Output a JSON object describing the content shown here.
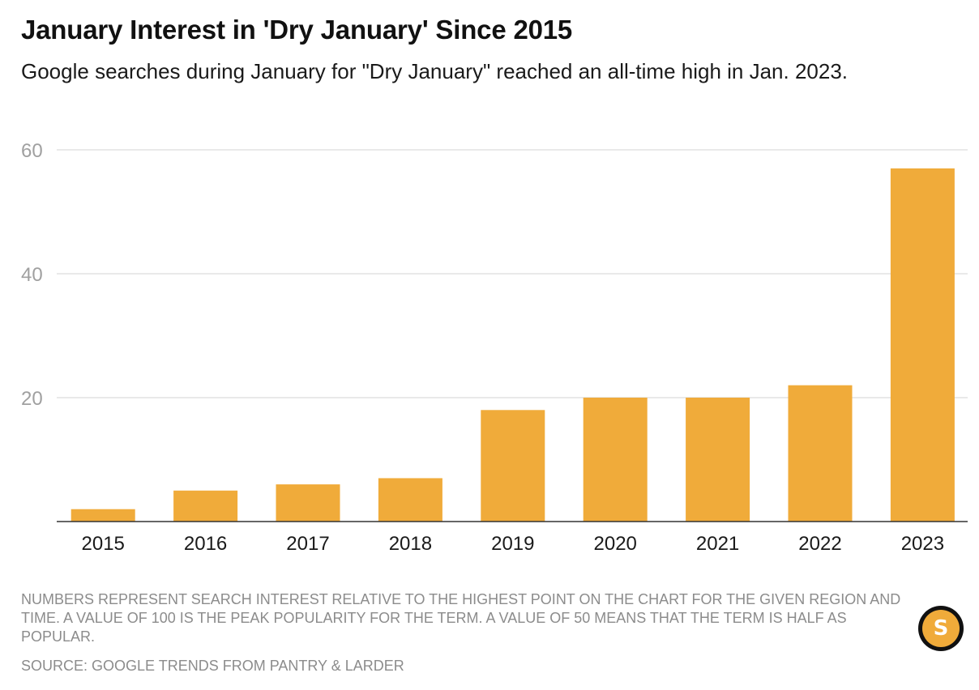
{
  "header": {
    "title": "January Interest in 'Dry January' Since 2015",
    "subtitle": "Google searches during January for \"Dry January\" reached an all-time high in Jan. 2023."
  },
  "chart_data": {
    "type": "bar",
    "categories": [
      "2015",
      "2016",
      "2017",
      "2018",
      "2019",
      "2020",
      "2021",
      "2022",
      "2023"
    ],
    "values": [
      2,
      5,
      6,
      7,
      18,
      20,
      20,
      22,
      57
    ],
    "ylim": [
      0,
      60
    ],
    "yticks": [
      20,
      40,
      60
    ],
    "grid": true,
    "bar_color": "#f0ab3a",
    "xlabel": "",
    "ylabel": ""
  },
  "footer": {
    "note": "Numbers represent search interest relative to the highest point on the chart for the given region and time. A value of 100 is the peak popularity for the term. A value of 50 means that the term is half as popular.",
    "source": "Source: Google Trends from Pantry & Larder",
    "logo_letter": "S"
  },
  "colors": {
    "accent": "#f0ab3a",
    "gridline": "#e2e2e2",
    "axis_text": "#a0a0a0",
    "footnote_text": "#8c8c8c"
  }
}
